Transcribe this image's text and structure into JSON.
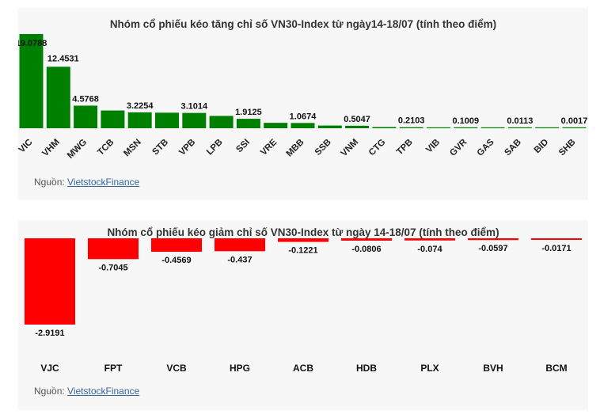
{
  "charts": {
    "gain": {
      "title": "Nhóm cổ phiếu kéo tăng chỉ số VN30-Index từ ngày14-18/07 (tính theo điểm)",
      "source_prefix": "Nguồn: ",
      "source_link": "VietstockFinance"
    },
    "loss": {
      "title": "Nhóm cổ phiếu kéo giảm chỉ số VN30-Index từ ngày 14-18/07 (tính theo điểm)",
      "source_prefix": "Nguồn: ",
      "source_link": "VietstockFinance"
    }
  },
  "chart_data": [
    {
      "type": "bar",
      "title": "Nhóm cổ phiếu kéo tăng chỉ số VN30-Index từ ngày14-18/07 (tính theo điểm)",
      "categories": [
        "VIC",
        "VHM",
        "MWG",
        "TCB",
        "MSN",
        "STB",
        "VPB",
        "LPB",
        "SSI",
        "VRE",
        "MBB",
        "SSB",
        "VNM",
        "CTG",
        "TPB",
        "VIB",
        "GVR",
        "GAS",
        "SAB",
        "BID",
        "SHB"
      ],
      "values": [
        19.0788,
        12.4531,
        4.5768,
        3.6,
        3.2254,
        3.15,
        3.1014,
        2.5,
        1.9125,
        1.1,
        1.0674,
        0.55,
        0.5047,
        0.25,
        0.2103,
        0.15,
        0.1009,
        0.05,
        0.0113,
        0.008,
        0.0017
      ],
      "data_labels": [
        "19.0788",
        "",
        "4.5768",
        "",
        "3.2254",
        "",
        "3.1014",
        "",
        "1.9125",
        "",
        "1.0674",
        "",
        "0.5047",
        "",
        "0.2103",
        "",
        "0.1009",
        "",
        "0.0113",
        "",
        "0.0017"
      ],
      "extra_labels": [
        {
          "category": "VHM",
          "text": "12.4531"
        }
      ],
      "ylim": [
        0,
        19.0788
      ],
      "color": "#008000",
      "grid": false,
      "legend": "none"
    },
    {
      "type": "bar",
      "title": "Nhóm cổ phiếu kéo giảm chỉ số VN30-Index từ ngày 14-18/07 (tính theo điểm)",
      "categories": [
        "VJC",
        "FPT",
        "VCB",
        "HPG",
        "ACB",
        "HDB",
        "PLX",
        "BVH",
        "BCM"
      ],
      "values": [
        -2.9191,
        -0.7045,
        -0.4569,
        -0.437,
        -0.1221,
        -0.0806,
        -0.074,
        -0.0597,
        -0.0171
      ],
      "data_labels": [
        "-2.9191",
        "-0.7045",
        "-0.4569",
        "-0.437",
        "-0.1221",
        "-0.0806",
        "-0.074",
        "-0.0597",
        "-0.0171"
      ],
      "ylim": [
        -2.9191,
        0
      ],
      "color": "#ff0000",
      "grid": false,
      "legend": "none"
    }
  ]
}
